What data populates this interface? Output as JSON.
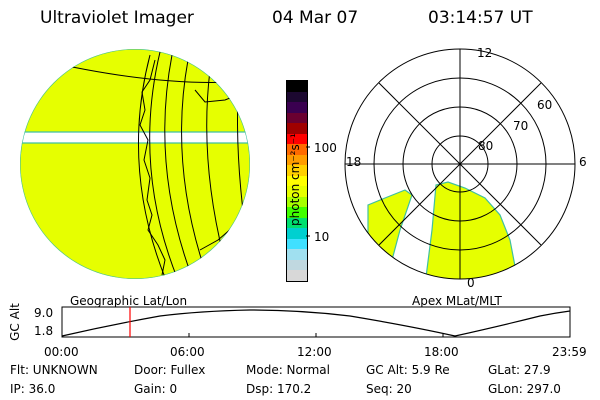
{
  "header": {
    "title": "Ultraviolet Imager",
    "date": "04 Mar 07",
    "time": "03:14:57 UT"
  },
  "colorbar": {
    "unit_label": "photon cm⁻²s⁻¹",
    "ticks": [
      "100",
      "10"
    ],
    "colors": [
      "#000000",
      "#1c0830",
      "#3a0050",
      "#6a0030",
      "#a00000",
      "#ff0000",
      "#ff6a00",
      "#ff9c00",
      "#ffd000",
      "#ffff00",
      "#e6ff00",
      "#a6ff00",
      "#40ff00",
      "#00e070",
      "#00d0d0",
      "#40e0ff",
      "#a0e0f0",
      "#c0d8e0",
      "#d8d8d8"
    ]
  },
  "left_panel": {
    "label": "Geographic Lat/Lon",
    "fill_color": "#e6ff00",
    "edge_color": "#40c0a0"
  },
  "right_panel": {
    "label": "Apex MLat/MLT",
    "mlt_labels": {
      "top": "12",
      "left": "18",
      "right": "6",
      "bottom": "0"
    },
    "lat_labels": [
      "80",
      "70",
      "60"
    ]
  },
  "altitude_plot": {
    "ylabel": "GC Alt",
    "yticks": [
      "9.0",
      "1.8"
    ],
    "xticks": [
      "00:00",
      "06:00",
      "12:00",
      "18:00",
      "23:59"
    ],
    "marker_color": "#ff0000"
  },
  "footer": {
    "row1": {
      "flt": "Flt: UNKNOWN",
      "door": "Door: Fullex",
      "mode": "Mode: Normal",
      "gcalt": "GC Alt: 5.9 Re",
      "glat": "GLat: 27.9"
    },
    "row2": {
      "ip": "IP: 36.0",
      "gain": "Gain:  0",
      "dsp": "Dsp:  170.2",
      "seq": "Seq: 20",
      "glon": "GLon: 297.0"
    }
  }
}
